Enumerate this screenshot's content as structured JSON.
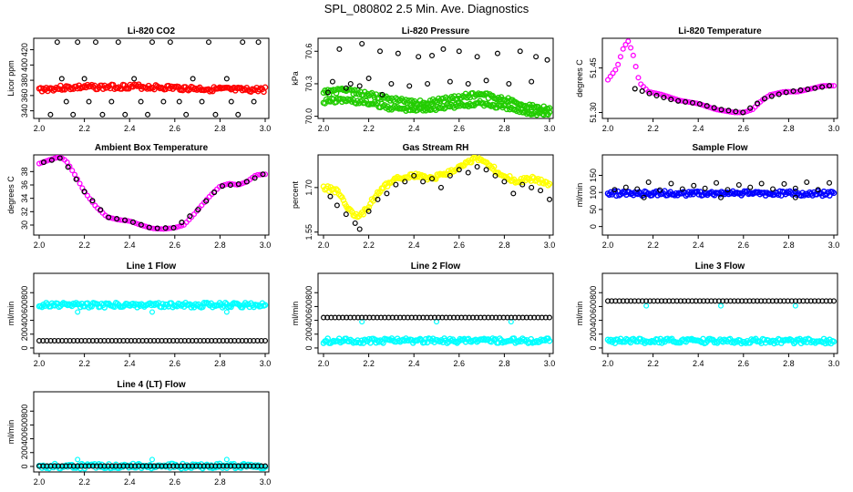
{
  "title": "SPL_080802  2.5 Min. Ave. Diagnostics",
  "colors": {
    "red": "#ff0000",
    "green": "#22cc00",
    "magenta": "#ff00ff",
    "yellow": "#ffff00",
    "blue": "#0000ff",
    "cyan": "#00ffff",
    "black": "#000000"
  },
  "chart_data": [
    {
      "id": "co2",
      "type": "scatter",
      "title": "Li-820 CO2",
      "ylabel": "Licor ppm",
      "xlim": [
        2.0,
        3.0
      ],
      "ylim": [
        330,
        435
      ],
      "xticks": [
        "2.0",
        "2.2",
        "2.4",
        "2.6",
        "2.8",
        "3.0"
      ],
      "yticks": [
        "340",
        "360",
        "380",
        "400",
        "420"
      ],
      "series": [
        {
          "color": "red",
          "marker": "band",
          "x": [
            2.0,
            2.1,
            2.2,
            2.3,
            2.4,
            2.5,
            2.6,
            2.7,
            2.8,
            2.9,
            3.0
          ],
          "y": [
            368,
            370,
            371,
            371,
            372,
            371,
            370,
            369,
            368,
            367,
            368
          ]
        },
        {
          "color": "black",
          "marker": "ring",
          "x": [
            2.08,
            2.1,
            2.17,
            2.2,
            2.25,
            2.35,
            2.42,
            2.5,
            2.58,
            2.68,
            2.75,
            2.83,
            2.9,
            2.97,
            2.12,
            2.22,
            2.32,
            2.45,
            2.55,
            2.62,
            2.72,
            2.85,
            2.95,
            2.05,
            2.15,
            2.28,
            2.38,
            2.48,
            2.65,
            2.78,
            2.88
          ],
          "y": [
            430,
            382,
            430,
            382,
            430,
            430,
            382,
            430,
            430,
            382,
            430,
            382,
            430,
            430,
            352,
            352,
            352,
            352,
            352,
            352,
            352,
            352,
            352,
            335,
            335,
            335,
            335,
            335,
            335,
            335,
            335
          ]
        }
      ]
    },
    {
      "id": "pressure",
      "type": "scatter",
      "title": "Li-820 Pressure",
      "ylabel": "kPa",
      "xlim": [
        2.0,
        3.0
      ],
      "ylim": [
        69.98,
        70.72
      ],
      "xticks": [
        "2.0",
        "2.2",
        "2.4",
        "2.6",
        "2.8",
        "3.0"
      ],
      "yticks": [
        "70.0",
        "70.3",
        "70.6"
      ],
      "series": [
        {
          "color": "green",
          "marker": "band",
          "x": [
            2.0,
            2.1,
            2.2,
            2.3,
            2.4,
            2.5,
            2.6,
            2.7,
            2.8,
            2.9,
            3.0
          ],
          "y": [
            70.22,
            70.24,
            70.2,
            70.16,
            70.12,
            70.14,
            70.18,
            70.2,
            70.16,
            70.1,
            70.06
          ]
        },
        {
          "color": "green",
          "marker": "band",
          "x": [
            2.0,
            2.1,
            2.2,
            2.3,
            2.4,
            2.5,
            2.6,
            2.7,
            2.8,
            2.9,
            3.0
          ],
          "y": [
            70.14,
            70.15,
            70.12,
            70.08,
            70.06,
            70.08,
            70.1,
            70.12,
            70.08,
            70.04,
            70.02
          ]
        },
        {
          "color": "black",
          "marker": "ring",
          "x": [
            2.07,
            2.17,
            2.25,
            2.33,
            2.42,
            2.48,
            2.53,
            2.6,
            2.68,
            2.77,
            2.87,
            2.94,
            2.99,
            2.04,
            2.12,
            2.2,
            2.3,
            2.38,
            2.46,
            2.56,
            2.64,
            2.72,
            2.82,
            2.92,
            2.02,
            2.1,
            2.16,
            2.26
          ],
          "y": [
            70.62,
            70.67,
            70.6,
            70.58,
            70.55,
            70.56,
            70.62,
            70.6,
            70.55,
            70.58,
            70.6,
            70.55,
            70.52,
            70.32,
            70.3,
            70.35,
            70.3,
            70.28,
            70.3,
            70.32,
            70.3,
            70.33,
            70.3,
            70.32,
            70.22,
            70.26,
            70.28,
            70.2
          ]
        }
      ]
    },
    {
      "id": "licor-temp",
      "type": "scatter",
      "title": "Li-820 Temperature",
      "ylabel": "degrees C",
      "xlim": [
        2.0,
        3.0
      ],
      "ylim": [
        51.28,
        51.55
      ],
      "xticks": [
        "2.0",
        "2.2",
        "2.4",
        "2.6",
        "2.8",
        "3.0"
      ],
      "yticks": [
        "51.30",
        "51.45"
      ],
      "series": [
        {
          "color": "magenta",
          "marker": "curve",
          "x": [
            2.0,
            2.04,
            2.07,
            2.09,
            2.11,
            2.14,
            2.18,
            2.24,
            2.32,
            2.4,
            2.48,
            2.56,
            2.6,
            2.64,
            2.68,
            2.72,
            2.78,
            2.84,
            2.9,
            2.95,
            3.0
          ],
          "y": [
            51.41,
            51.45,
            51.52,
            51.54,
            51.5,
            51.4,
            51.37,
            51.36,
            51.34,
            51.33,
            51.31,
            51.3,
            51.3,
            51.31,
            51.34,
            51.36,
            51.37,
            51.37,
            51.38,
            51.39,
            51.39
          ]
        },
        {
          "color": "black",
          "marker": "curve",
          "x": [
            2.12,
            2.2,
            2.3,
            2.4,
            2.5,
            2.6,
            2.7,
            2.8,
            2.9,
            2.98
          ],
          "y": [
            51.38,
            51.36,
            51.34,
            51.33,
            51.31,
            51.3,
            51.35,
            51.37,
            51.38,
            51.39
          ]
        }
      ]
    },
    {
      "id": "ambient-temp",
      "type": "scatter",
      "title": "Ambient Box Temperature",
      "ylabel": "degrees C",
      "xlim": [
        2.0,
        3.0
      ],
      "ylim": [
        28.5,
        40.5
      ],
      "xticks": [
        "2.0",
        "2.2",
        "2.4",
        "2.6",
        "2.8",
        "3.0"
      ],
      "yticks": [
        "30",
        "32",
        "34",
        "36",
        "38"
      ],
      "series": [
        {
          "color": "magenta",
          "marker": "curve",
          "x": [
            2.0,
            2.05,
            2.09,
            2.12,
            2.16,
            2.2,
            2.25,
            2.3,
            2.35,
            2.4,
            2.45,
            2.5,
            2.55,
            2.6,
            2.64,
            2.68,
            2.72,
            2.76,
            2.8,
            2.84,
            2.88,
            2.92,
            2.96,
            3.0
          ],
          "y": [
            39.2,
            39.8,
            40.2,
            39.6,
            37.4,
            35.0,
            32.8,
            31.2,
            30.8,
            30.6,
            30.0,
            29.5,
            29.4,
            29.6,
            30.0,
            31.4,
            33.0,
            34.5,
            35.8,
            36.2,
            36.0,
            36.5,
            37.5,
            37.6
          ]
        },
        {
          "color": "black",
          "marker": "curve",
          "x": [
            2.02,
            2.1,
            2.2,
            2.3,
            2.4,
            2.5,
            2.6,
            2.7,
            2.8,
            2.9,
            2.99
          ],
          "y": [
            39.4,
            40.1,
            35.0,
            31.2,
            30.6,
            29.5,
            29.6,
            32.2,
            35.8,
            36.2,
            37.6
          ]
        }
      ]
    },
    {
      "id": "rh",
      "type": "scatter",
      "title": "Gas Stream RH",
      "ylabel": "percent",
      "xlim": [
        2.0,
        3.0
      ],
      "ylim": [
        1.54,
        1.81
      ],
      "xticks": [
        "2.0",
        "2.2",
        "2.4",
        "2.6",
        "2.8",
        "3.0"
      ],
      "yticks": [
        "1.55",
        "1.70"
      ],
      "series": [
        {
          "color": "yellow",
          "marker": "band",
          "x": [
            2.0,
            2.06,
            2.12,
            2.16,
            2.2,
            2.26,
            2.32,
            2.4,
            2.48,
            2.55,
            2.62,
            2.68,
            2.72,
            2.78,
            2.85,
            2.92,
            3.0
          ],
          "y": [
            1.7,
            1.69,
            1.62,
            1.6,
            1.64,
            1.7,
            1.73,
            1.74,
            1.73,
            1.75,
            1.78,
            1.8,
            1.78,
            1.75,
            1.72,
            1.73,
            1.71
          ]
        },
        {
          "color": "black",
          "marker": "ring",
          "x": [
            2.03,
            2.06,
            2.1,
            2.14,
            2.16,
            2.2,
            2.24,
            2.28,
            2.32,
            2.36,
            2.4,
            2.44,
            2.48,
            2.52,
            2.56,
            2.6,
            2.64,
            2.68,
            2.72,
            2.76,
            2.8,
            2.84,
            2.88,
            2.92,
            2.96,
            3.0
          ],
          "y": [
            1.67,
            1.64,
            1.61,
            1.58,
            1.56,
            1.62,
            1.66,
            1.68,
            1.71,
            1.72,
            1.74,
            1.72,
            1.73,
            1.7,
            1.74,
            1.76,
            1.75,
            1.77,
            1.76,
            1.74,
            1.72,
            1.68,
            1.71,
            1.7,
            1.69,
            1.66
          ]
        }
      ]
    },
    {
      "id": "sample-flow",
      "type": "scatter",
      "title": "Sample Flow",
      "ylabel": "ml/min",
      "xlim": [
        2.0,
        3.0
      ],
      "ylim": [
        -25,
        210
      ],
      "xticks": [
        "2.0",
        "2.2",
        "2.4",
        "2.6",
        "2.8",
        "3.0"
      ],
      "yticks": [
        "0",
        "50",
        "100",
        "150"
      ],
      "series": [
        {
          "color": "blue",
          "marker": "band",
          "x": [
            2.0,
            3.0
          ],
          "y": [
            97,
            97
          ]
        },
        {
          "color": "black",
          "marker": "ring",
          "x": [
            2.03,
            2.08,
            2.13,
            2.18,
            2.23,
            2.28,
            2.33,
            2.38,
            2.43,
            2.48,
            2.53,
            2.58,
            2.63,
            2.68,
            2.73,
            2.78,
            2.83,
            2.88,
            2.93,
            2.98,
            2.16,
            2.5,
            2.83
          ],
          "y": [
            108,
            115,
            110,
            130,
            107,
            126,
            110,
            120,
            112,
            128,
            108,
            122,
            115,
            126,
            110,
            125,
            112,
            130,
            108,
            128,
            85,
            85,
            85
          ]
        }
      ]
    },
    {
      "id": "line1",
      "type": "scatter",
      "title": "Line 1 Flow",
      "ylabel": "ml/min",
      "xlim": [
        2.0,
        3.0
      ],
      "ylim": [
        -80,
        1080
      ],
      "xticks": [
        "2.0",
        "2.2",
        "2.4",
        "2.6",
        "2.8",
        "3.0"
      ],
      "yticks": [
        "0",
        "200",
        "400",
        "600",
        "800"
      ],
      "series": [
        {
          "color": "cyan",
          "marker": "band",
          "x": [
            2.0,
            3.0
          ],
          "y": [
            620,
            620
          ]
        },
        {
          "color": "cyan",
          "marker": "ring",
          "x": [
            2.17,
            2.5,
            2.83
          ],
          "y": [
            520,
            520,
            520
          ]
        },
        {
          "color": "black",
          "marker": "chain",
          "x": [
            2.0,
            3.0
          ],
          "y": [
            105,
            105
          ]
        }
      ]
    },
    {
      "id": "line2",
      "type": "scatter",
      "title": "Line 2 Flow",
      "ylabel": "ml/min",
      "xlim": [
        2.0,
        3.0
      ],
      "ylim": [
        -80,
        1080
      ],
      "xticks": [
        "2.0",
        "2.2",
        "2.4",
        "2.6",
        "2.8",
        "3.0"
      ],
      "yticks": [
        "0",
        "200",
        "400",
        "600",
        "800"
      ],
      "series": [
        {
          "color": "cyan",
          "marker": "band",
          "x": [
            2.0,
            3.0
          ],
          "y": [
            105,
            105
          ]
        },
        {
          "color": "cyan",
          "marker": "ring",
          "x": [
            2.17,
            2.5,
            2.83
          ],
          "y": [
            380,
            380,
            380
          ]
        },
        {
          "color": "black",
          "marker": "chain",
          "x": [
            2.0,
            3.0
          ],
          "y": [
            440,
            440
          ]
        }
      ]
    },
    {
      "id": "line3",
      "type": "scatter",
      "title": "Line 3 Flow",
      "ylabel": "ml/min",
      "xlim": [
        2.0,
        3.0
      ],
      "ylim": [
        -80,
        1080
      ],
      "xticks": [
        "2.0",
        "2.2",
        "2.4",
        "2.6",
        "2.8",
        "3.0"
      ],
      "yticks": [
        "0",
        "200",
        "400",
        "600",
        "800"
      ],
      "series": [
        {
          "color": "cyan",
          "marker": "band",
          "x": [
            2.0,
            3.0
          ],
          "y": [
            100,
            100
          ]
        },
        {
          "color": "cyan",
          "marker": "ring",
          "x": [
            2.17,
            2.5,
            2.83
          ],
          "y": [
            610,
            610,
            610
          ]
        },
        {
          "color": "black",
          "marker": "chain",
          "x": [
            2.0,
            3.0
          ],
          "y": [
            680,
            680
          ]
        }
      ]
    },
    {
      "id": "line4",
      "type": "scatter",
      "title": "Line 4 (LT) Flow",
      "ylabel": "ml/min",
      "xlim": [
        2.0,
        3.0
      ],
      "ylim": [
        -80,
        1080
      ],
      "xticks": [
        "2.0",
        "2.2",
        "2.4",
        "2.6",
        "2.8",
        "3.0"
      ],
      "yticks": [
        "0",
        "200",
        "400",
        "600",
        "800"
      ],
      "series": [
        {
          "color": "cyan",
          "marker": "band",
          "x": [
            2.0,
            3.0
          ],
          "y": [
            5,
            5
          ]
        },
        {
          "color": "cyan",
          "marker": "ring",
          "x": [
            2.17,
            2.5,
            2.83
          ],
          "y": [
            100,
            100,
            100
          ]
        },
        {
          "color": "black",
          "marker": "chain",
          "x": [
            2.0,
            3.0
          ],
          "y": [
            5,
            5
          ]
        }
      ]
    }
  ]
}
